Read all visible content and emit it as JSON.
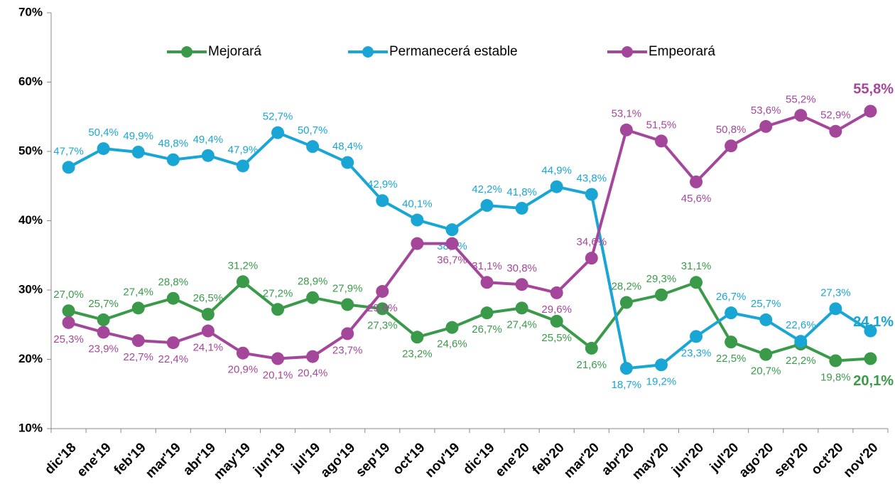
{
  "chart_data": {
    "type": "line",
    "categories": [
      "dic'18",
      "ene'19",
      "feb'19",
      "mar'19",
      "abr'19",
      "may'19",
      "jun'19",
      "jul'19",
      "ago'19",
      "sep'19",
      "oct'19",
      "nov'19",
      "dic'19",
      "ene'20",
      "feb'20",
      "mar'20",
      "abr'20",
      "may'20",
      "jun'20",
      "jul'20",
      "ago'20",
      "sep'20",
      "oct'20",
      "nov'20"
    ],
    "series": [
      {
        "name": "Mejorará",
        "color": "#3a9a4a",
        "values": [
          27.0,
          25.7,
          27.4,
          28.8,
          26.5,
          31.2,
          27.2,
          28.9,
          27.9,
          27.3,
          23.2,
          24.6,
          26.7,
          27.4,
          25.5,
          21.6,
          28.2,
          29.3,
          31.1,
          22.5,
          20.7,
          22.2,
          19.8,
          20.1
        ],
        "value_labels": [
          "27,0%",
          "25,7%",
          "27,4%",
          "28,8%",
          "26,5%",
          "31,2%",
          "27,2%",
          "28,9%",
          "27,9%",
          "27,3%",
          "23,2%",
          "24,6%",
          "26,7%",
          "27,4%",
          "25,5%",
          "21,6%",
          "28,2%",
          "29,3%",
          "31,1%",
          "22,5%",
          "20,7%",
          "22,2%",
          "19,8%",
          "20,1%"
        ]
      },
      {
        "name": "Permanecerá estable",
        "color": "#1aa6d4",
        "values": [
          47.7,
          50.4,
          49.9,
          48.8,
          49.4,
          47.9,
          52.7,
          50.7,
          48.4,
          42.9,
          40.1,
          38.7,
          42.2,
          41.8,
          44.9,
          43.8,
          18.7,
          19.2,
          23.3,
          26.7,
          25.7,
          22.6,
          27.3,
          24.1
        ],
        "value_labels": [
          "47,7%",
          "50,4%",
          "49,9%",
          "48,8%",
          "49,4%",
          "47,9%",
          "52,7%",
          "50,7%",
          "48,4%",
          "42,9%",
          "40,1%",
          "38,7%",
          "42,2%",
          "41,8%",
          "44,9%",
          "43,8%",
          "18,7%",
          "19,2%",
          "23,3%",
          "26,7%",
          "25,7%",
          "22,6%",
          "27,3%",
          "24,1%"
        ]
      },
      {
        "name": "Empeorará",
        "color": "#a4479a",
        "values": [
          25.3,
          23.9,
          22.7,
          22.4,
          24.1,
          20.9,
          20.1,
          20.4,
          23.7,
          29.8,
          36.7,
          36.7,
          31.1,
          30.8,
          29.6,
          34.6,
          53.1,
          51.5,
          45.6,
          50.8,
          53.6,
          55.2,
          52.9,
          55.8
        ],
        "value_labels": [
          "25,3%",
          "23,9%",
          "22,7%",
          "22,4%",
          "24,1%",
          "20,9%",
          "20,1%",
          "20,4%",
          "23,7%",
          "29,8%",
          null,
          "36,7%",
          "31,1%",
          "30,8%",
          "29,6%",
          "34,6%",
          "53,1%",
          "51,5%",
          "45,6%",
          "50,8%",
          "53,6%",
          "55,2%",
          "52,9%",
          "55,8%"
        ]
      }
    ],
    "ylim": [
      10,
      70
    ],
    "yticks": [
      {
        "value": 10,
        "label": "10%"
      },
      {
        "value": 20,
        "label": "20%"
      },
      {
        "value": 30,
        "label": "30%"
      },
      {
        "value": 40,
        "label": "40%"
      },
      {
        "value": 50,
        "label": "50%"
      },
      {
        "value": 60,
        "label": "60%"
      },
      {
        "value": 70,
        "label": "70%"
      }
    ],
    "legend": "top"
  }
}
